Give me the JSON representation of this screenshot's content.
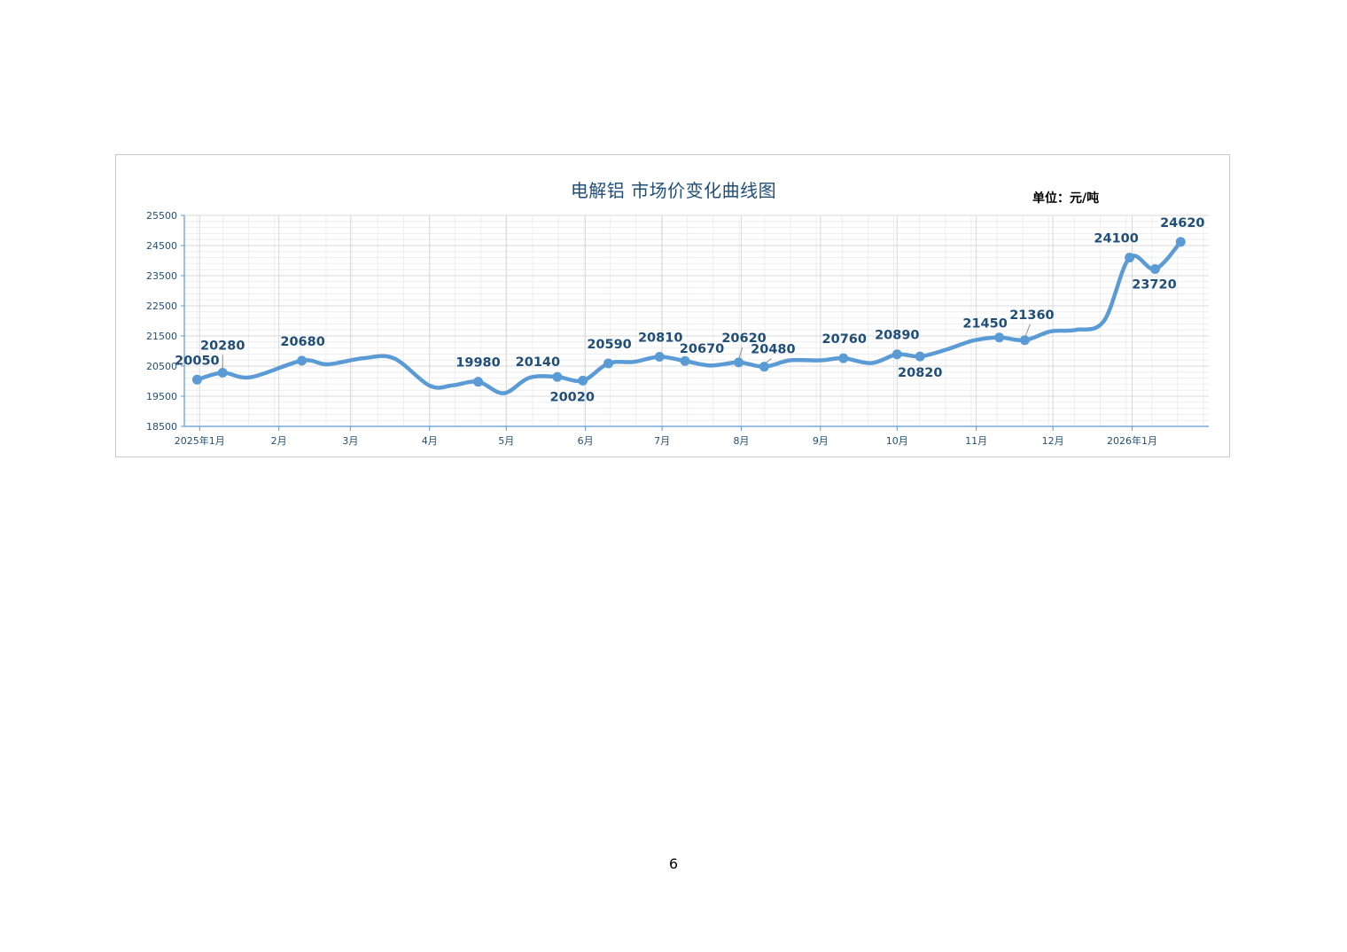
{
  "page": {
    "number": "6"
  },
  "colors": {
    "line": "#5b9bd5",
    "label": "#1f4e79",
    "grid_major": "#d9d9d9",
    "grid_minor": "#eeeeee",
    "axis": "#5b9bd5",
    "frame": "#c9c9c9"
  },
  "chart_data": {
    "type": "line",
    "title": "电解铝 市场价变化曲线图",
    "unit_label": "单位：元/吨",
    "xlabel": "",
    "ylabel": "",
    "ylim": [
      18500,
      25500
    ],
    "yticks": [
      18500,
      19500,
      20500,
      21500,
      22500,
      23500,
      24500,
      25500
    ],
    "x_range": [
      "2024-12-26",
      "2026-01-31"
    ],
    "x_ticks": [
      {
        "date": "2025-01-01",
        "label": "2025年1月"
      },
      {
        "date": "2025-02-01",
        "label": "2月"
      },
      {
        "date": "2025-03-01",
        "label": "3月"
      },
      {
        "date": "2025-04-01",
        "label": "4月"
      },
      {
        "date": "2025-05-01",
        "label": "5月"
      },
      {
        "date": "2025-06-01",
        "label": "6月"
      },
      {
        "date": "2025-07-01",
        "label": "7月"
      },
      {
        "date": "2025-08-01",
        "label": "8月"
      },
      {
        "date": "2025-09-01",
        "label": "9月"
      },
      {
        "date": "2025-10-01",
        "label": "10月"
      },
      {
        "date": "2025-11-01",
        "label": "11月"
      },
      {
        "date": "2025-12-01",
        "label": "12月"
      },
      {
        "date": "2026-01-01",
        "label": "2026年1月"
      }
    ],
    "grid": true,
    "smooth": true,
    "series": [
      {
        "points": [
          {
            "date": "2024-12-31",
            "value": 20050,
            "label": "20050",
            "marker": true
          },
          {
            "date": "2025-01-10",
            "value": 20280,
            "label": "20280",
            "marker": true
          },
          {
            "date": "2025-01-21",
            "value": 20130,
            "marker": false
          },
          {
            "date": "2025-02-10",
            "value": 20680,
            "label": "20680",
            "marker": true
          },
          {
            "date": "2025-02-20",
            "value": 20560,
            "marker": false
          },
          {
            "date": "2025-03-06",
            "value": 20760,
            "marker": false
          },
          {
            "date": "2025-03-18",
            "value": 20760,
            "marker": false
          },
          {
            "date": "2025-04-01",
            "value": 19850,
            "marker": false
          },
          {
            "date": "2025-04-10",
            "value": 19860,
            "marker": false
          },
          {
            "date": "2025-04-20",
            "value": 19980,
            "label": "19980",
            "marker": true
          },
          {
            "date": "2025-04-30",
            "value": 19600,
            "marker": false
          },
          {
            "date": "2025-05-10",
            "value": 20110,
            "marker": false
          },
          {
            "date": "2025-05-21",
            "value": 20140,
            "label": "20140",
            "marker": true
          },
          {
            "date": "2025-05-31",
            "value": 20020,
            "label": "20020",
            "marker": true
          },
          {
            "date": "2025-06-10",
            "value": 20590,
            "label": "20590",
            "marker": true
          },
          {
            "date": "2025-06-20",
            "value": 20640,
            "marker": false
          },
          {
            "date": "2025-06-30",
            "value": 20810,
            "label": "20810",
            "marker": true
          },
          {
            "date": "2025-07-10",
            "value": 20670,
            "label": "20670",
            "marker": true
          },
          {
            "date": "2025-07-20",
            "value": 20520,
            "marker": false
          },
          {
            "date": "2025-07-31",
            "value": 20620,
            "label": "20620",
            "marker": true
          },
          {
            "date": "2025-08-10",
            "value": 20480,
            "label": "20480",
            "marker": true
          },
          {
            "date": "2025-08-20",
            "value": 20690,
            "marker": false
          },
          {
            "date": "2025-09-01",
            "value": 20690,
            "marker": false
          },
          {
            "date": "2025-09-10",
            "value": 20760,
            "label": "20760",
            "marker": true
          },
          {
            "date": "2025-09-21",
            "value": 20600,
            "marker": false
          },
          {
            "date": "2025-10-01",
            "value": 20890,
            "label": "20890",
            "marker": true
          },
          {
            "date": "2025-10-10",
            "value": 20820,
            "label": "20820",
            "marker": true
          },
          {
            "date": "2025-10-20",
            "value": 21040,
            "marker": false
          },
          {
            "date": "2025-10-31",
            "value": 21350,
            "marker": false
          },
          {
            "date": "2025-11-10",
            "value": 21450,
            "label": "21450",
            "marker": true
          },
          {
            "date": "2025-11-20",
            "value": 21360,
            "label": "21360",
            "marker": true
          },
          {
            "date": "2025-11-30",
            "value": 21650,
            "marker": false
          },
          {
            "date": "2025-12-10",
            "value": 21700,
            "marker": false
          },
          {
            "date": "2025-12-21",
            "value": 22000,
            "marker": false
          },
          {
            "date": "2025-12-31",
            "value": 24100,
            "label": "24100",
            "marker": true
          },
          {
            "date": "2026-01-10",
            "value": 23720,
            "label": "23720",
            "marker": true
          },
          {
            "date": "2026-01-20",
            "value": 24620,
            "label": "24620",
            "marker": true
          }
        ]
      }
    ]
  }
}
